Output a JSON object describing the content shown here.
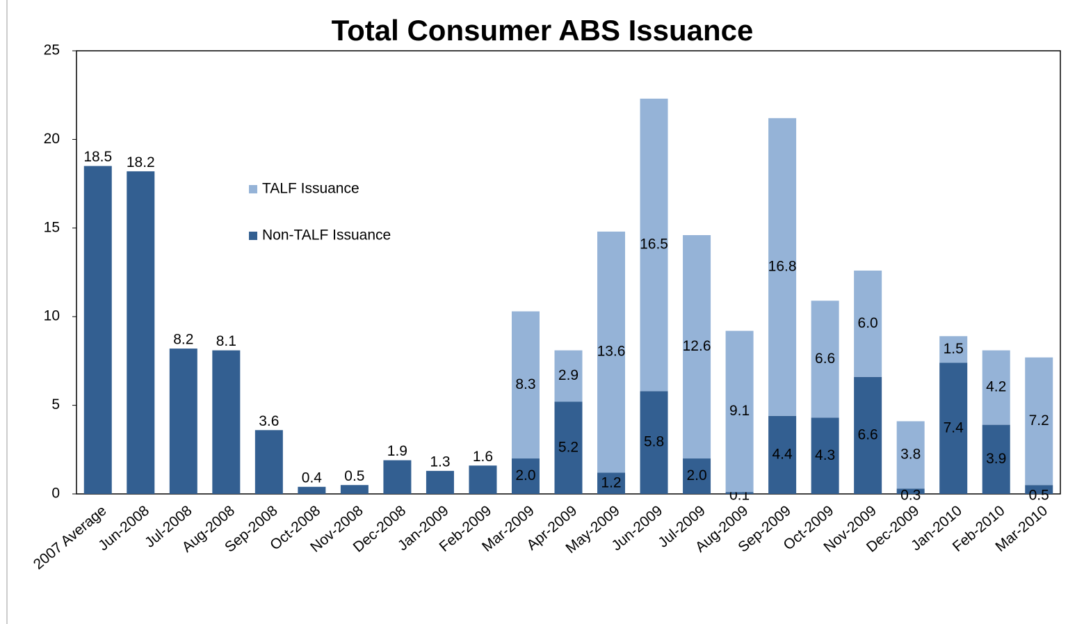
{
  "chart_data": {
    "type": "stacked_bar",
    "title": "Total Consumer ABS Issuance",
    "categories": [
      "2007 Average",
      "Jun-2008",
      "Jul-2008",
      "Aug-2008",
      "Sep-2008",
      "Oct-2008",
      "Nov-2008",
      "Dec-2008",
      "Jan-2009",
      "Feb-2009",
      "Mar-2009",
      "Apr-2009",
      "May-2009",
      "Jun-2009",
      "Jul-2009",
      "Aug-2009",
      "Sep-2009",
      "Oct-2009",
      "Nov-2009",
      "Dec-2009",
      "Jan-2010",
      "Feb-2010",
      "Mar-2010"
    ],
    "series": [
      {
        "name": "Non-TALF Issuance",
        "color": "#335f91",
        "values": [
          18.5,
          18.2,
          8.2,
          8.1,
          3.6,
          0.4,
          0.5,
          1.9,
          1.3,
          1.6,
          2.0,
          5.2,
          1.2,
          5.8,
          2.0,
          0.1,
          4.4,
          4.3,
          6.6,
          0.3,
          7.4,
          3.9,
          0.5
        ],
        "value_labels": [
          "18.5",
          "18.2",
          "8.2",
          "8.1",
          "3.6",
          "0.4",
          "0.5",
          "1.9",
          "1.3",
          "1.6",
          "2.0",
          "5.2",
          "1.2",
          "5.8",
          "2.0",
          "0.1",
          "4.4",
          "4.3",
          "6.6",
          "0.3",
          "7.4",
          "3.9",
          "0.5"
        ]
      },
      {
        "name": "TALF Issuance",
        "color": "#95b3d7",
        "values": [
          null,
          null,
          null,
          null,
          null,
          null,
          null,
          null,
          null,
          null,
          8.3,
          2.9,
          13.6,
          16.5,
          12.6,
          9.1,
          16.8,
          6.6,
          6.0,
          3.8,
          1.5,
          4.2,
          7.2
        ],
        "value_labels": [
          null,
          null,
          null,
          null,
          null,
          null,
          null,
          null,
          null,
          null,
          "8.3",
          "2.9",
          "13.6",
          "16.5",
          "12.6",
          "9.1",
          "16.8",
          "6.6",
          "6.0",
          "3.8",
          "1.5",
          "4.2",
          "7.2"
        ]
      }
    ],
    "ylim": [
      0,
      25
    ],
    "yticks": [
      0,
      5,
      10,
      15,
      20,
      25
    ],
    "grid": false
  }
}
